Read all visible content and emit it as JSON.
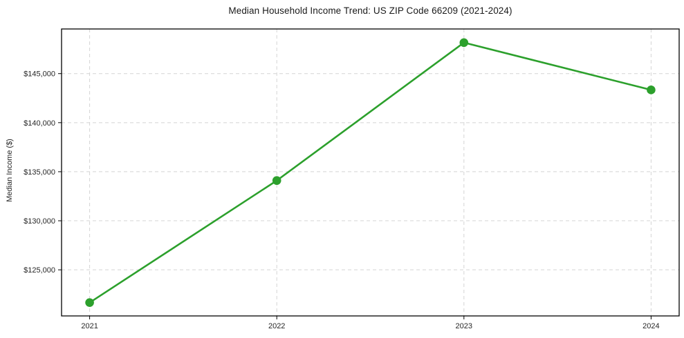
{
  "chart_data": {
    "type": "line",
    "title": "Median Household Income Trend: US ZIP Code 66209 (2021-2024)",
    "xlabel": "",
    "ylabel": "Median Income ($)",
    "x": [
      2021,
      2022,
      2023,
      2024
    ],
    "x_tick_labels": [
      "2021",
      "2022",
      "2023",
      "2024"
    ],
    "series": [
      {
        "name": "Median Household Income",
        "values": [
          121660,
          134100,
          148160,
          143340
        ]
      }
    ],
    "y_ticks": [
      125000,
      130000,
      135000,
      140000,
      145000
    ],
    "y_tick_labels": [
      "$125,000",
      "$130,000",
      "$135,000",
      "$140,000",
      "$145,000"
    ],
    "xlim": [
      2020.85,
      2024.15
    ],
    "ylim": [
      120300,
      149550
    ],
    "grid": true,
    "grid_style": "dashed",
    "legend_position": "none",
    "line_color": "#2ca02c",
    "marker": "circle",
    "grid_color": "#d4d4d4",
    "background_color": "#ffffff"
  }
}
